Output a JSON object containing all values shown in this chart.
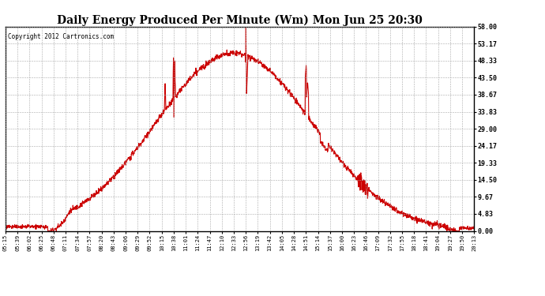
{
  "title": "Daily Energy Produced Per Minute (Wm) Mon Jun 25 20:30",
  "copyright": "Copyright 2012 Cartronics.com",
  "background_color": "#ffffff",
  "line_color": "#cc0000",
  "grid_color": "#aaaaaa",
  "yticks": [
    0.0,
    4.83,
    9.67,
    14.5,
    19.33,
    24.17,
    29.0,
    33.83,
    38.67,
    43.5,
    48.33,
    53.17,
    58.0
  ],
  "ymax": 58.0,
  "ymin": 0.0,
  "xtick_labels": [
    "05:15",
    "05:39",
    "06:02",
    "06:25",
    "06:48",
    "07:11",
    "07:34",
    "07:57",
    "08:20",
    "08:43",
    "09:06",
    "09:29",
    "09:52",
    "10:15",
    "10:38",
    "11:01",
    "11:24",
    "11:47",
    "12:10",
    "12:33",
    "12:56",
    "13:19",
    "13:42",
    "14:05",
    "14:28",
    "14:51",
    "15:14",
    "15:37",
    "16:00",
    "16:23",
    "16:46",
    "17:09",
    "17:32",
    "17:55",
    "18:18",
    "18:41",
    "19:04",
    "19:27",
    "19:50",
    "20:13"
  ]
}
